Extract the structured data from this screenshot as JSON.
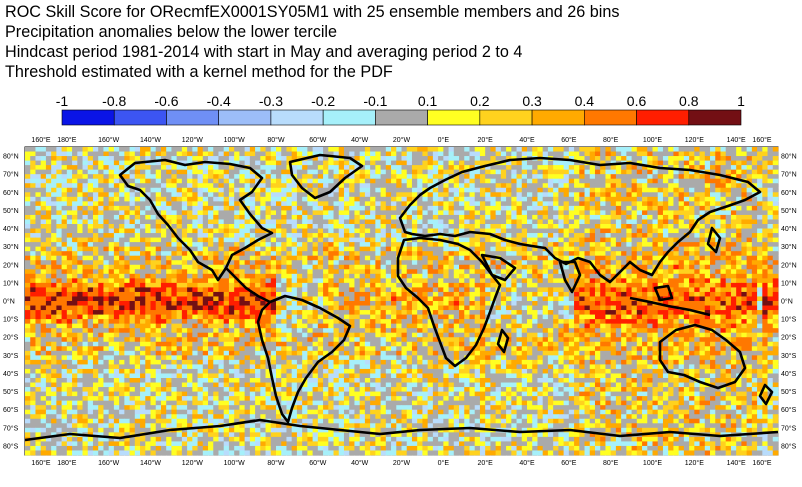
{
  "title_lines": [
    "ROC Skill Score for ORecmfEX0001SY05M1 with 25 ensemble members and 26 bins",
    "Precipitation anomalies below the lower tercile",
    "Hindcast period 1981-2014 with start in May and averaging period  2 to  4",
    "Threshold estimated with a kernel method for the PDF"
  ],
  "chart_data": {
    "type": "heatmap",
    "map": "global skill-score map (ROC Skill Score)",
    "colorbar": {
      "labels": [
        "-1",
        "-0.8",
        "-0.6",
        "-0.4",
        "-0.3",
        "-0.2",
        "-0.1",
        "0.1",
        "0.2",
        "0.3",
        "0.4",
        "0.6",
        "0.8",
        "1"
      ],
      "colors": [
        "#0a14e6",
        "#3c55f2",
        "#6f8ff5",
        "#9cbdf8",
        "#b8dcfc",
        "#a6f0fa",
        "#aaaaaa",
        "#ffff22",
        "#ffd21e",
        "#ffaa00",
        "#ff7800",
        "#ff1e00",
        "#730f14"
      ]
    },
    "lon_ticks": [
      "160°E",
      "180°E",
      "160°W",
      "140°W",
      "120°W",
      "100°W",
      "80°W",
      "60°W",
      "40°W",
      "20°W",
      "0°E",
      "20°E",
      "40°E",
      "60°E",
      "80°E",
      "100°E",
      "120°E",
      "140°E",
      "160°E"
    ],
    "lat_ticks": [
      "80°N",
      "70°N",
      "60°N",
      "50°N",
      "40°N",
      "30°N",
      "20°N",
      "10°N",
      "0°N",
      "10°S",
      "20°S",
      "30°S",
      "40°S",
      "50°S",
      "60°S",
      "70°S",
      "80°S"
    ],
    "xlim": [
      "160°E",
      "160°E"
    ],
    "ylim": [
      "85°S",
      "85°N"
    ],
    "grid_resolution_deg": 2.5,
    "patterns": [
      "strong positive skill band across the equatorial Pacific",
      "positive skill over the Maritime Continent and Indian Ocean",
      "mixed near-zero and weakly negative skill over the extratropics"
    ]
  }
}
